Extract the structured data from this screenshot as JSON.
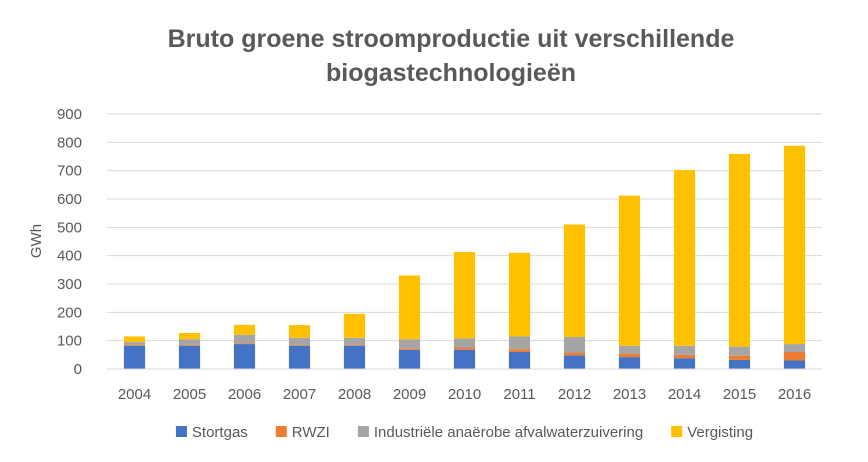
{
  "chart_data": {
    "type": "bar",
    "stacked": true,
    "title_lines": [
      "Bruto groene stroomproductie uit verschillende",
      "biogastechnologieën"
    ],
    "xlabel": "",
    "ylabel": "GWh",
    "ylim": [
      0,
      900
    ],
    "yticks": [
      0,
      100,
      200,
      300,
      400,
      500,
      600,
      700,
      800,
      900
    ],
    "grid": true,
    "legend_position": "bottom",
    "categories": [
      "2004",
      "2005",
      "2006",
      "2007",
      "2008",
      "2009",
      "2010",
      "2011",
      "2012",
      "2013",
      "2014",
      "2015",
      "2016"
    ],
    "series": [
      {
        "name": "Stortgas",
        "color": "#4472C4",
        "values": [
          82,
          82,
          88,
          82,
          82,
          68,
          68,
          60,
          48,
          42,
          38,
          32,
          30
        ]
      },
      {
        "name": "RWZI",
        "color": "#ED7D31",
        "values": [
          3,
          3,
          3,
          3,
          3,
          5,
          8,
          10,
          10,
          12,
          12,
          15,
          30
        ]
      },
      {
        "name": "Industriële anaërobe afvalwaterzuivering",
        "color": "#A5A5A5",
        "values": [
          10,
          20,
          30,
          25,
          25,
          32,
          32,
          45,
          55,
          28,
          32,
          32,
          28
        ]
      },
      {
        "name": "Vergisting",
        "color": "#FFC000",
        "values": [
          20,
          22,
          35,
          45,
          85,
          225,
          305,
          295,
          397,
          530,
          620,
          680,
          700
        ]
      }
    ]
  }
}
